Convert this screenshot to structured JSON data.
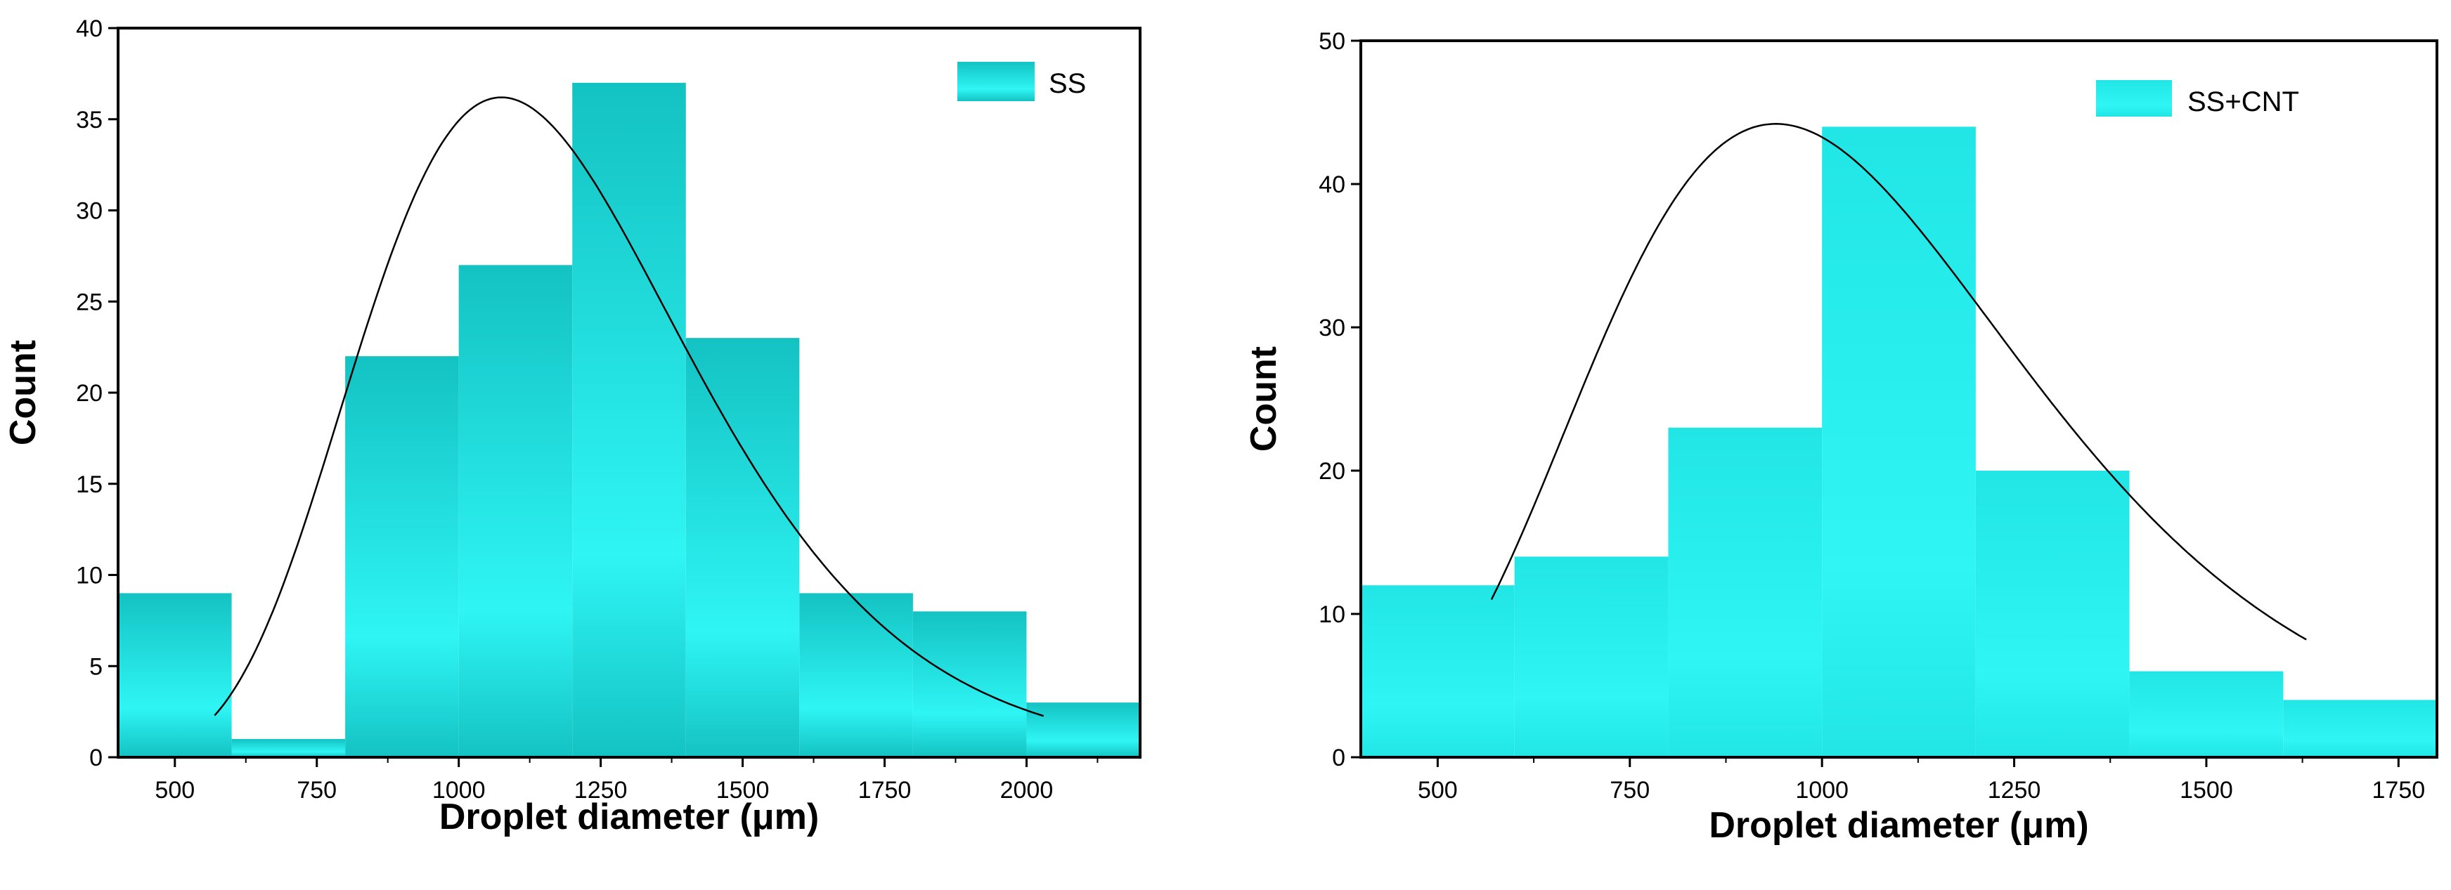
{
  "chart_data": [
    {
      "type": "bar",
      "title": "",
      "xlabel": "Droplet diameter (μm)",
      "ylabel": "Count",
      "xlim": [
        400,
        2200
      ],
      "ylim": [
        0,
        40
      ],
      "x_ticks": [
        500,
        750,
        1000,
        1250,
        1500,
        1750,
        2000
      ],
      "y_ticks": [
        0,
        5,
        10,
        15,
        20,
        25,
        30,
        35,
        40
      ],
      "bin_width": 200,
      "bins": [
        {
          "start": 400,
          "end": 600,
          "value": 9
        },
        {
          "start": 600,
          "end": 800,
          "value": 1
        },
        {
          "start": 800,
          "end": 1000,
          "value": 22
        },
        {
          "start": 1000,
          "end": 1200,
          "value": 27
        },
        {
          "start": 1200,
          "end": 1400,
          "value": 37
        },
        {
          "start": 1400,
          "end": 1600,
          "value": 23
        },
        {
          "start": 1600,
          "end": 1800,
          "value": 9
        },
        {
          "start": 1800,
          "end": 2000,
          "value": 8
        },
        {
          "start": 2000,
          "end": 2200,
          "value": 3
        }
      ],
      "fit_curve": {
        "type": "lognormal",
        "x_range": [
          570,
          2030
        ],
        "peak_x": 1075,
        "peak_y": 36.2
      },
      "series": [
        {
          "name": "SS"
        }
      ],
      "legend": "top-right",
      "grid": false,
      "colors": {
        "bar_top": "#14c2c2",
        "bar_bottom": "#2ff5f5",
        "curve": "#000000"
      }
    },
    {
      "type": "bar",
      "title": "",
      "xlabel": "Droplet diameter (μm)",
      "ylabel": "Count",
      "xlim": [
        400,
        1800
      ],
      "ylim": [
        0,
        50
      ],
      "x_ticks": [
        500,
        750,
        1000,
        1250,
        1500,
        1750
      ],
      "y_ticks": [
        0,
        10,
        20,
        30,
        40,
        50
      ],
      "bin_width": 200,
      "bins": [
        {
          "start": 400,
          "end": 600,
          "value": 12
        },
        {
          "start": 600,
          "end": 800,
          "value": 14
        },
        {
          "start": 800,
          "end": 1000,
          "value": 23
        },
        {
          "start": 1000,
          "end": 1200,
          "value": 44
        },
        {
          "start": 1200,
          "end": 1400,
          "value": 20
        },
        {
          "start": 1400,
          "end": 1600,
          "value": 6
        },
        {
          "start": 1600,
          "end": 1800,
          "value": 4
        }
      ],
      "fit_curve": {
        "type": "lognormal",
        "x_range": [
          570,
          1630
        ],
        "peak_x": 940,
        "peak_y": 44.2
      },
      "series": [
        {
          "name": "SS+CNT"
        }
      ],
      "legend": "top-right",
      "grid": false,
      "colors": {
        "bar_top": "#22e6e6",
        "bar_bottom": "#2ff5f5",
        "curve": "#000000"
      }
    }
  ]
}
